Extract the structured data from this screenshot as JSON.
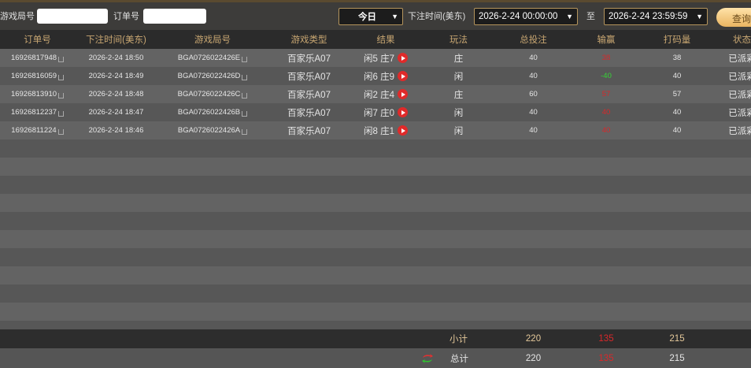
{
  "filters": {
    "round_label": "游戏局号",
    "round_value": "",
    "order_label": "订单号",
    "order_value": "",
    "period": "今日",
    "time_label": "下注时间(美东)",
    "start": "2026-2-24 00:00:00",
    "to_label": "至",
    "end": "2026-2-24 23:59:59",
    "query": "查询"
  },
  "columns": [
    "订单号",
    "下注时间(美东)",
    "游戏局号",
    "游戏类型",
    "结果",
    "玩法",
    "总投注",
    "输赢",
    "打码量",
    "状态"
  ],
  "rows": [
    {
      "order": "16926817948",
      "time": "2026-2-24 18:50",
      "round": "BGA0726022426E",
      "game": "百家乐A07",
      "result": "闲5 庄7",
      "play": "庄",
      "bet": "40",
      "win": "38",
      "win_color": "red",
      "code": "38",
      "status": "已派彩"
    },
    {
      "order": "16926816059",
      "time": "2026-2-24 18:49",
      "round": "BGA0726022426D",
      "game": "百家乐A07",
      "result": "闲6 庄9",
      "play": "闲",
      "bet": "40",
      "win": "-40",
      "win_color": "green",
      "code": "40",
      "status": "已派彩"
    },
    {
      "order": "16926813910",
      "time": "2026-2-24 18:48",
      "round": "BGA0726022426C",
      "game": "百家乐A07",
      "result": "闲2 庄4",
      "play": "庄",
      "bet": "60",
      "win": "57",
      "win_color": "red",
      "code": "57",
      "status": "已派彩"
    },
    {
      "order": "16926812237",
      "time": "2026-2-24 18:47",
      "round": "BGA0726022426B",
      "game": "百家乐A07",
      "result": "闲7 庄0",
      "play": "闲",
      "bet": "40",
      "win": "40",
      "win_color": "red",
      "code": "40",
      "status": "已派彩"
    },
    {
      "order": "16926811224",
      "time": "2026-2-24 18:46",
      "round": "BGA0726022426A",
      "game": "百家乐A07",
      "result": "闲8 庄1",
      "play": "闲",
      "bet": "40",
      "win": "40",
      "win_color": "red",
      "code": "40",
      "status": "已派彩"
    }
  ],
  "subtotal": {
    "label": "小计",
    "bet": "220",
    "win": "135",
    "code": "215"
  },
  "total": {
    "label": "总计",
    "bet": "220",
    "win": "135",
    "code": "215"
  },
  "colors": {
    "win_red": "#d8282a",
    "loss_green": "#35d435",
    "accent_gold": "#c9a772"
  }
}
